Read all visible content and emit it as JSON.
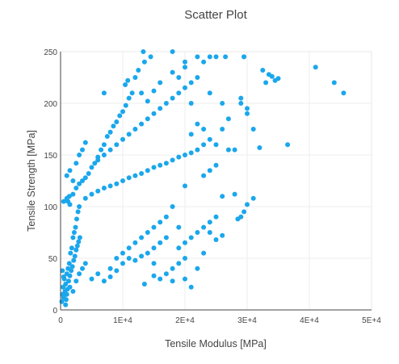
{
  "chart_data": {
    "type": "scatter",
    "title": "Scatter Plot",
    "xlabel": "Tensile Modulus [MPa]",
    "ylabel": "Tensile Strength [MPa]",
    "xlim": [
      0,
      50000
    ],
    "ylim": [
      0,
      250
    ],
    "x_ticks": [
      0,
      10000,
      20000,
      30000,
      40000,
      50000
    ],
    "x_tick_labels": [
      "0",
      "1E+4",
      "2E+4",
      "3E+4",
      "4E+4",
      "5E+4"
    ],
    "y_ticks": [
      0,
      50,
      100,
      150,
      200,
      250
    ],
    "y_tick_labels": [
      "0",
      "50",
      "100",
      "150",
      "200",
      "250"
    ],
    "grid": true,
    "marker_color": "#1aa7ec",
    "series": [
      {
        "points": [
          [
            200,
            8
          ],
          [
            300,
            15
          ],
          [
            400,
            22
          ],
          [
            500,
            12
          ],
          [
            600,
            30
          ],
          [
            700,
            18
          ],
          [
            800,
            25
          ],
          [
            900,
            10
          ],
          [
            1000,
            35
          ],
          [
            1100,
            20
          ],
          [
            1200,
            40
          ],
          [
            1300,
            28
          ],
          [
            1400,
            45
          ],
          [
            1500,
            33
          ],
          [
            1600,
            55
          ],
          [
            1700,
            38
          ],
          [
            1800,
            60
          ],
          [
            1900,
            42
          ],
          [
            2000,
            70
          ],
          [
            2100,
            48
          ],
          [
            2200,
            75
          ],
          [
            2300,
            52
          ],
          [
            2400,
            80
          ],
          [
            2500,
            58
          ],
          [
            2600,
            88
          ],
          [
            2700,
            62
          ],
          [
            2800,
            95
          ],
          [
            2900,
            66
          ],
          [
            3000,
            100
          ],
          [
            3100,
            70
          ],
          [
            300,
            38
          ],
          [
            500,
            32
          ],
          [
            800,
            5
          ],
          [
            1000,
            15
          ],
          [
            1500,
            22
          ],
          [
            2000,
            18
          ],
          [
            2500,
            28
          ],
          [
            3000,
            35
          ],
          [
            3500,
            40
          ],
          [
            4000,
            45
          ],
          [
            1200,
            105
          ],
          [
            1400,
            110
          ],
          [
            2000,
            112
          ],
          [
            2500,
            118
          ],
          [
            3000,
            122
          ],
          [
            3500,
            125
          ],
          [
            4000,
            128
          ],
          [
            4500,
            132
          ],
          [
            5000,
            138
          ],
          [
            5500,
            142
          ],
          [
            6000,
            148
          ],
          [
            6500,
            155
          ],
          [
            7000,
            160
          ],
          [
            7500,
            168
          ],
          [
            8000,
            172
          ],
          [
            8500,
            178
          ],
          [
            9000,
            182
          ],
          [
            9500,
            188
          ],
          [
            10000,
            192
          ],
          [
            10500,
            198
          ],
          [
            11000,
            205
          ],
          [
            11500,
            210
          ],
          [
            10400,
            218
          ],
          [
            10800,
            222
          ],
          [
            12000,
            225
          ],
          [
            12500,
            232
          ],
          [
            13500,
            240
          ],
          [
            14500,
            245
          ],
          [
            13300,
            250
          ],
          [
            18000,
            250
          ],
          [
            8000,
            40
          ],
          [
            9000,
            50
          ],
          [
            10000,
            55
          ],
          [
            11000,
            60
          ],
          [
            12000,
            65
          ],
          [
            13000,
            70
          ],
          [
            14000,
            75
          ],
          [
            15000,
            80
          ],
          [
            16000,
            85
          ],
          [
            17000,
            90
          ],
          [
            5000,
            30
          ],
          [
            6000,
            35
          ],
          [
            7000,
            28
          ],
          [
            8000,
            32
          ],
          [
            9000,
            38
          ],
          [
            10000,
            45
          ],
          [
            11000,
            50
          ],
          [
            12000,
            48
          ],
          [
            13000,
            52
          ],
          [
            14000,
            55
          ],
          [
            15000,
            60
          ],
          [
            16000,
            65
          ],
          [
            17000,
            70
          ],
          [
            18000,
            40
          ],
          [
            19000,
            45
          ],
          [
            20000,
            50
          ],
          [
            13500,
            25
          ],
          [
            15000,
            45
          ],
          [
            16000,
            30
          ],
          [
            17000,
            35
          ],
          [
            19000,
            60
          ],
          [
            20000,
            65
          ],
          [
            21000,
            70
          ],
          [
            22000,
            75
          ],
          [
            23000,
            80
          ],
          [
            24000,
            85
          ],
          [
            25000,
            90
          ],
          [
            21000,
            22
          ],
          [
            18000,
            28
          ],
          [
            15000,
            33
          ],
          [
            4000,
            108
          ],
          [
            5000,
            112
          ],
          [
            6000,
            115
          ],
          [
            7000,
            118
          ],
          [
            8000,
            120
          ],
          [
            9000,
            122
          ],
          [
            10000,
            125
          ],
          [
            11000,
            128
          ],
          [
            12000,
            130
          ],
          [
            13000,
            132
          ],
          [
            14000,
            135
          ],
          [
            15000,
            138
          ],
          [
            16000,
            140
          ],
          [
            17000,
            142
          ],
          [
            18000,
            145
          ],
          [
            19000,
            148
          ],
          [
            20000,
            150
          ],
          [
            21000,
            152
          ],
          [
            22000,
            155
          ],
          [
            23000,
            160
          ],
          [
            6000,
            145
          ],
          [
            7000,
            150
          ],
          [
            8000,
            155
          ],
          [
            9000,
            160
          ],
          [
            10000,
            165
          ],
          [
            11000,
            170
          ],
          [
            12000,
            175
          ],
          [
            13000,
            180
          ],
          [
            14000,
            185
          ],
          [
            15000,
            190
          ],
          [
            16000,
            195
          ],
          [
            17000,
            200
          ],
          [
            18000,
            205
          ],
          [
            19000,
            210
          ],
          [
            20000,
            215
          ],
          [
            21000,
            220
          ],
          [
            22000,
            225
          ],
          [
            23000,
            240
          ],
          [
            24000,
            245
          ],
          [
            25000,
            245
          ],
          [
            7000,
            210
          ],
          [
            13000,
            210
          ],
          [
            14000,
            202
          ],
          [
            15000,
            212
          ],
          [
            16000,
            220
          ],
          [
            18000,
            230
          ],
          [
            19000,
            225
          ],
          [
            20000,
            235
          ],
          [
            22000,
            245
          ],
          [
            26500,
            245
          ],
          [
            25000,
            160
          ],
          [
            27000,
            155
          ],
          [
            26000,
            175
          ],
          [
            24000,
            135
          ],
          [
            23000,
            130
          ],
          [
            26000,
            110
          ],
          [
            25000,
            140
          ],
          [
            29000,
            200
          ],
          [
            29000,
            205
          ],
          [
            29500,
            245
          ],
          [
            31000,
            175
          ],
          [
            30000,
            195
          ],
          [
            32000,
            157
          ],
          [
            36500,
            160
          ],
          [
            33000,
            220
          ],
          [
            33500,
            228
          ],
          [
            34000,
            226
          ],
          [
            35000,
            224
          ],
          [
            34500,
            222
          ],
          [
            32500,
            232
          ],
          [
            41000,
            235
          ],
          [
            44000,
            220
          ],
          [
            45500,
            210
          ],
          [
            31000,
            108
          ],
          [
            30000,
            102
          ],
          [
            29000,
            90
          ],
          [
            28500,
            88
          ],
          [
            29500,
            95
          ],
          [
            28000,
            112
          ],
          [
            29500,
            245
          ],
          [
            1000,
            130
          ],
          [
            1500,
            135
          ],
          [
            2000,
            125
          ],
          [
            500,
            105
          ],
          [
            1000,
            108
          ],
          [
            1500,
            102
          ],
          [
            2500,
            142
          ],
          [
            3000,
            150
          ],
          [
            3500,
            155
          ],
          [
            4000,
            162
          ],
          [
            20000,
            240
          ],
          [
            21000,
            200
          ],
          [
            24000,
            210
          ],
          [
            26000,
            200
          ],
          [
            22000,
            180
          ],
          [
            21000,
            170
          ],
          [
            23000,
            175
          ],
          [
            24000,
            165
          ],
          [
            20000,
            120
          ],
          [
            18000,
            100
          ],
          [
            19000,
            80
          ],
          [
            20000,
            30
          ],
          [
            22000,
            40
          ],
          [
            23000,
            55
          ],
          [
            24000,
            75
          ],
          [
            25000,
            68
          ],
          [
            26000,
            72
          ],
          [
            28000,
            155
          ],
          [
            30000,
            190
          ],
          [
            27000,
            185
          ]
        ]
      }
    ]
  }
}
